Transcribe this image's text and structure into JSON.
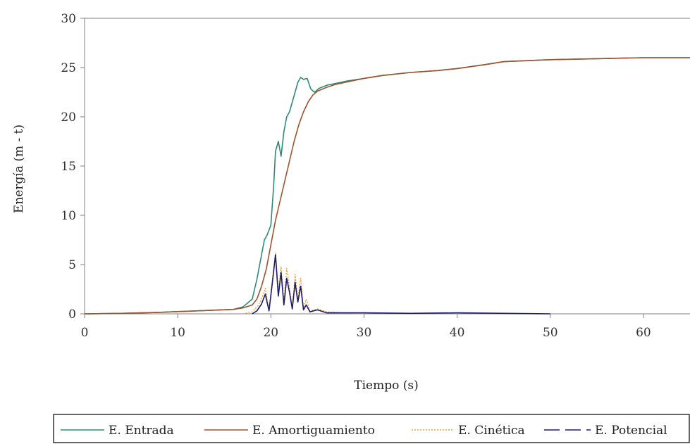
{
  "chart_data": {
    "type": "line",
    "title": "",
    "xlabel": "Tiempo (s)",
    "ylabel": "Energía (m - t)",
    "xlim": [
      0,
      65
    ],
    "ylim": [
      0,
      30
    ],
    "x_ticks": [
      0,
      10,
      20,
      30,
      40,
      50,
      60
    ],
    "y_ticks": [
      0,
      5,
      10,
      15,
      20,
      25,
      30
    ],
    "grid": false,
    "legend_position": "bottom",
    "series": [
      {
        "name": "E. Entrada",
        "color": "#2e8b73",
        "style": "solid",
        "x": [
          0,
          4,
          8,
          12,
          16,
          17,
          17.5,
          18,
          18.5,
          19,
          19.3,
          19.6,
          20,
          20.3,
          20.5,
          20.8,
          21.1,
          21.4,
          21.7,
          22,
          22.3,
          22.6,
          22.9,
          23.2,
          23.5,
          23.9,
          24.3,
          24.7,
          25.2,
          26,
          27,
          28,
          30,
          32,
          35,
          38,
          40,
          43,
          45,
          50,
          55,
          60,
          65
        ],
        "y": [
          0,
          0.05,
          0.15,
          0.3,
          0.45,
          0.7,
          1.1,
          1.5,
          3.5,
          6,
          7.5,
          8,
          9,
          13,
          16.5,
          17.5,
          16,
          18.5,
          20,
          20.5,
          21.5,
          22.5,
          23.5,
          24,
          23.8,
          23.9,
          22.8,
          22.5,
          22.9,
          23.2,
          23.4,
          23.6,
          23.9,
          24.2,
          24.5,
          24.7,
          24.9,
          25.3,
          25.6,
          25.8,
          25.9,
          26.0,
          26.0
        ]
      },
      {
        "name": "E. Amortiguamiento",
        "color": "#a0522d",
        "style": "solid",
        "x": [
          0,
          4,
          8,
          12,
          16,
          17,
          18,
          18.5,
          19,
          19.5,
          20,
          20.5,
          21,
          21.5,
          22,
          22.5,
          23,
          23.5,
          24,
          24.5,
          25,
          26,
          27,
          28,
          30,
          32,
          35,
          38,
          40,
          43,
          45,
          50,
          55,
          60,
          65
        ],
        "y": [
          0,
          0.05,
          0.15,
          0.3,
          0.45,
          0.6,
          0.9,
          1.5,
          2.8,
          4.5,
          7,
          9.5,
          11.5,
          13.5,
          15.5,
          17.5,
          19.2,
          20.5,
          21.5,
          22.2,
          22.6,
          23.0,
          23.3,
          23.5,
          23.9,
          24.2,
          24.5,
          24.7,
          24.9,
          25.3,
          25.6,
          25.8,
          25.9,
          26.0,
          26.0
        ]
      },
      {
        "name": "E. Cinética",
        "color": "#f0a030",
        "style": "dotted",
        "x": [
          17,
          18,
          18.6,
          19,
          19.4,
          19.8,
          20.2,
          20.5,
          20.8,
          21.1,
          21.4,
          21.7,
          22,
          22.3,
          22.6,
          22.9,
          23.2,
          23.5,
          23.8,
          24.2,
          25,
          26,
          28,
          30
        ],
        "y": [
          0,
          0.2,
          0.8,
          1.5,
          2.6,
          0.4,
          3.8,
          6.2,
          2.2,
          4.8,
          1.2,
          4.6,
          2.7,
          0.6,
          4.0,
          1.5,
          3.6,
          0.5,
          1.5,
          0.3,
          0.5,
          0.2,
          0.1,
          0
        ]
      },
      {
        "name": "E. Potencial",
        "color": "#1c1c6e",
        "style": "solid",
        "x": [
          18,
          18.5,
          19,
          19.4,
          19.8,
          20.2,
          20.5,
          20.8,
          21.1,
          21.4,
          21.7,
          22,
          22.3,
          22.6,
          22.9,
          23.2,
          23.5,
          23.8,
          24.2,
          25,
          26,
          28,
          30,
          35,
          40,
          45,
          50
        ],
        "y": [
          0,
          0.3,
          1.0,
          2.0,
          0.3,
          3.5,
          6.0,
          1.8,
          4.2,
          0.9,
          3.6,
          2.2,
          0.5,
          3.2,
          1.2,
          2.8,
          0.4,
          0.9,
          0.2,
          0.4,
          0.1,
          0.1,
          0.1,
          0.05,
          0.1,
          0.05,
          0
        ]
      }
    ]
  }
}
